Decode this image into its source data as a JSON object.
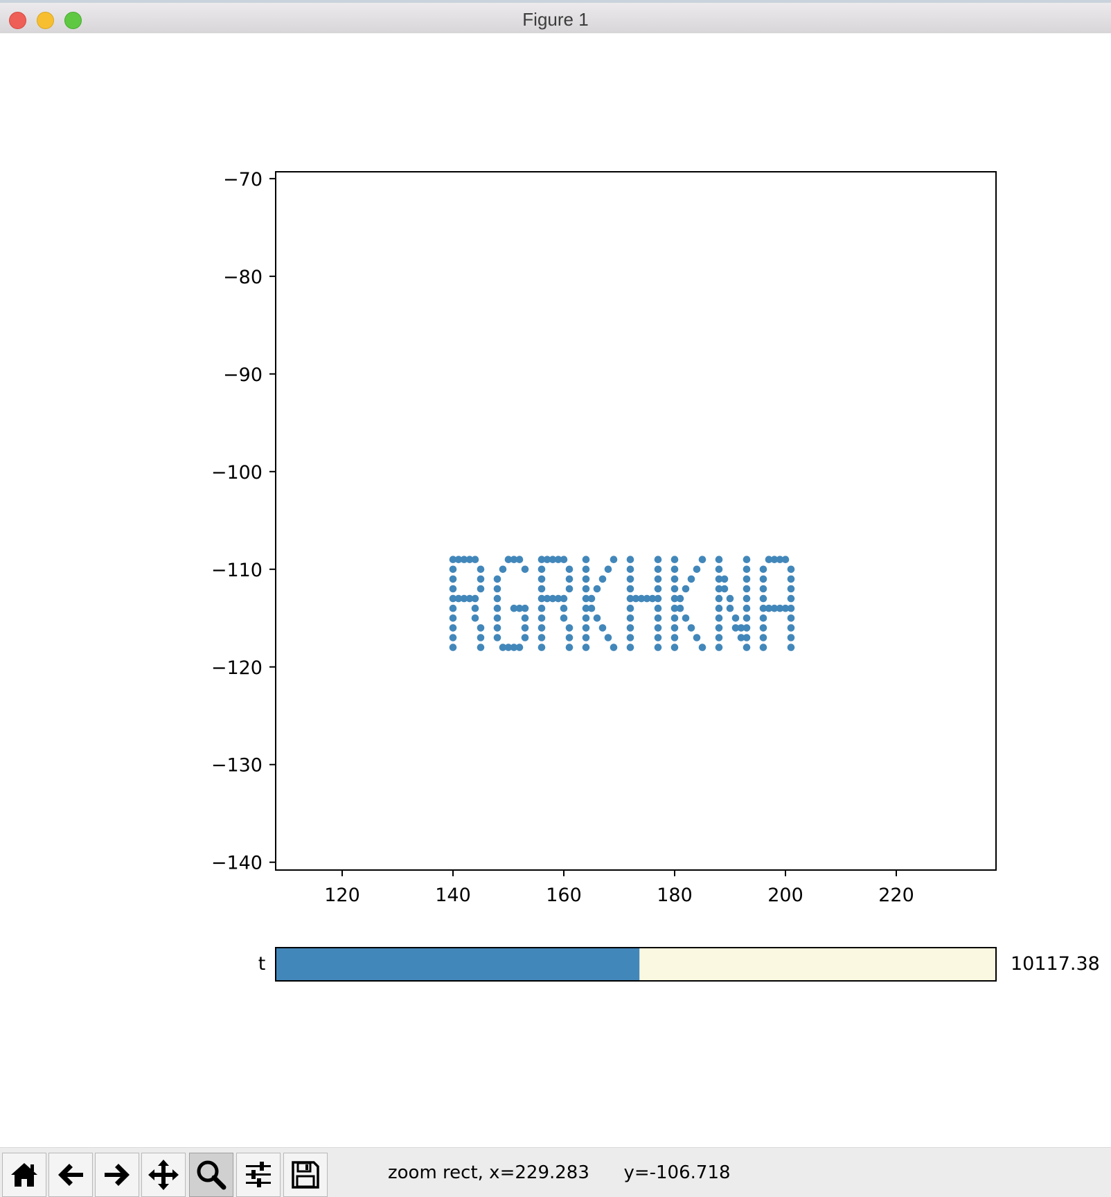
{
  "window": {
    "title": "Figure 1"
  },
  "chart_data": {
    "type": "scatter",
    "title": "",
    "xlabel": "",
    "ylabel": "",
    "xlim": [
      108,
      238
    ],
    "ylim": [
      -140.8,
      -69.3
    ],
    "x_ticks": [
      120,
      140,
      160,
      180,
      200,
      220
    ],
    "y_ticks": [
      -70,
      -80,
      -90,
      -100,
      -110,
      -120,
      -130,
      -140
    ],
    "x_tick_labels": [
      "120",
      "140",
      "160",
      "180",
      "200",
      "220"
    ],
    "y_tick_labels": [
      "−70",
      "−80",
      "−90",
      "−100",
      "−110",
      "−120",
      "−130",
      "−140"
    ],
    "marker_color": "#4287ba",
    "grid": false,
    "text_rendered_by_points": "RGRKHKNA",
    "points": [
      [
        140,
        -109
      ],
      [
        140,
        -110
      ],
      [
        140,
        -111
      ],
      [
        140,
        -112
      ],
      [
        140,
        -113
      ],
      [
        140,
        -114
      ],
      [
        140,
        -115
      ],
      [
        140,
        -116
      ],
      [
        140,
        -117
      ],
      [
        140,
        -118
      ],
      [
        141,
        -109
      ],
      [
        142,
        -109
      ],
      [
        143,
        -109
      ],
      [
        144,
        -109
      ],
      [
        141,
        -113
      ],
      [
        142,
        -113
      ],
      [
        143,
        -113
      ],
      [
        144,
        -113
      ],
      [
        145,
        -110
      ],
      [
        145,
        -111
      ],
      [
        145,
        -112
      ],
      [
        144,
        -114
      ],
      [
        144,
        -115
      ],
      [
        145,
        -116
      ],
      [
        145,
        -117
      ],
      [
        145,
        -118
      ],
      [
        150,
        -109
      ],
      [
        151,
        -109
      ],
      [
        152,
        -109
      ],
      [
        149,
        -110
      ],
      [
        148,
        -111
      ],
      [
        148,
        -112
      ],
      [
        148,
        -113
      ],
      [
        148,
        -114
      ],
      [
        148,
        -115
      ],
      [
        148,
        -116
      ],
      [
        148,
        -117
      ],
      [
        149,
        -118
      ],
      [
        150,
        -118
      ],
      [
        151,
        -118
      ],
      [
        152,
        -118
      ],
      [
        153,
        -117
      ],
      [
        153,
        -116
      ],
      [
        153,
        -115
      ],
      [
        153,
        -114
      ],
      [
        152,
        -114
      ],
      [
        151,
        -114
      ],
      [
        153,
        -110
      ],
      [
        156,
        -109
      ],
      [
        156,
        -110
      ],
      [
        156,
        -111
      ],
      [
        156,
        -112
      ],
      [
        156,
        -113
      ],
      [
        156,
        -114
      ],
      [
        156,
        -115
      ],
      [
        156,
        -116
      ],
      [
        156,
        -117
      ],
      [
        156,
        -118
      ],
      [
        157,
        -109
      ],
      [
        158,
        -109
      ],
      [
        159,
        -109
      ],
      [
        160,
        -109
      ],
      [
        157,
        -113
      ],
      [
        158,
        -113
      ],
      [
        159,
        -113
      ],
      [
        160,
        -113
      ],
      [
        161,
        -110
      ],
      [
        161,
        -111
      ],
      [
        161,
        -112
      ],
      [
        160,
        -114
      ],
      [
        160,
        -115
      ],
      [
        161,
        -116
      ],
      [
        161,
        -117
      ],
      [
        161,
        -118
      ],
      [
        164,
        -109
      ],
      [
        164,
        -110
      ],
      [
        164,
        -111
      ],
      [
        164,
        -112
      ],
      [
        164,
        -113
      ],
      [
        164,
        -114
      ],
      [
        164,
        -115
      ],
      [
        164,
        -116
      ],
      [
        164,
        -117
      ],
      [
        164,
        -118
      ],
      [
        169,
        -109
      ],
      [
        168,
        -110
      ],
      [
        167,
        -111
      ],
      [
        166,
        -112
      ],
      [
        165,
        -113
      ],
      [
        165,
        -114
      ],
      [
        166,
        -115
      ],
      [
        167,
        -116
      ],
      [
        168,
        -117
      ],
      [
        169,
        -118
      ],
      [
        172,
        -109
      ],
      [
        172,
        -110
      ],
      [
        172,
        -111
      ],
      [
        172,
        -112
      ],
      [
        172,
        -113
      ],
      [
        172,
        -114
      ],
      [
        172,
        -115
      ],
      [
        172,
        -116
      ],
      [
        172,
        -117
      ],
      [
        172,
        -118
      ],
      [
        173,
        -113
      ],
      [
        174,
        -113
      ],
      [
        175,
        -113
      ],
      [
        176,
        -113
      ],
      [
        177,
        -109
      ],
      [
        177,
        -110
      ],
      [
        177,
        -111
      ],
      [
        177,
        -112
      ],
      [
        177,
        -113
      ],
      [
        177,
        -114
      ],
      [
        177,
        -115
      ],
      [
        177,
        -116
      ],
      [
        177,
        -117
      ],
      [
        177,
        -118
      ],
      [
        180,
        -109
      ],
      [
        180,
        -110
      ],
      [
        180,
        -111
      ],
      [
        180,
        -112
      ],
      [
        180,
        -113
      ],
      [
        180,
        -114
      ],
      [
        180,
        -115
      ],
      [
        180,
        -116
      ],
      [
        180,
        -117
      ],
      [
        180,
        -118
      ],
      [
        185,
        -109
      ],
      [
        184,
        -110
      ],
      [
        183,
        -111
      ],
      [
        182,
        -112
      ],
      [
        181,
        -113
      ],
      [
        181,
        -114
      ],
      [
        182,
        -115
      ],
      [
        183,
        -116
      ],
      [
        184,
        -117
      ],
      [
        185,
        -118
      ],
      [
        188,
        -109
      ],
      [
        188,
        -110
      ],
      [
        188,
        -111
      ],
      [
        188,
        -112
      ],
      [
        188,
        -113
      ],
      [
        188,
        -114
      ],
      [
        188,
        -115
      ],
      [
        188,
        -116
      ],
      [
        188,
        -117
      ],
      [
        188,
        -118
      ],
      [
        189,
        -111
      ],
      [
        189,
        -112
      ],
      [
        190,
        -113
      ],
      [
        190,
        -114
      ],
      [
        191,
        -115
      ],
      [
        191,
        -116
      ],
      [
        192,
        -117
      ],
      [
        192,
        -116
      ],
      [
        193,
        -109
      ],
      [
        193,
        -110
      ],
      [
        193,
        -111
      ],
      [
        193,
        -112
      ],
      [
        193,
        -113
      ],
      [
        193,
        -114
      ],
      [
        193,
        -115
      ],
      [
        193,
        -116
      ],
      [
        193,
        -117
      ],
      [
        193,
        -118
      ],
      [
        196,
        -110
      ],
      [
        196,
        -111
      ],
      [
        196,
        -112
      ],
      [
        196,
        -113
      ],
      [
        196,
        -114
      ],
      [
        196,
        -115
      ],
      [
        196,
        -116
      ],
      [
        196,
        -117
      ],
      [
        196,
        -118
      ],
      [
        197,
        -109
      ],
      [
        198,
        -109
      ],
      [
        199,
        -109
      ],
      [
        200,
        -109
      ],
      [
        201,
        -110
      ],
      [
        201,
        -111
      ],
      [
        201,
        -112
      ],
      [
        201,
        -113
      ],
      [
        201,
        -114
      ],
      [
        201,
        -115
      ],
      [
        201,
        -116
      ],
      [
        201,
        -117
      ],
      [
        201,
        -118
      ],
      [
        197,
        -114
      ],
      [
        198,
        -114
      ],
      [
        199,
        -114
      ],
      [
        200,
        -114
      ]
    ]
  },
  "slider": {
    "label": "t",
    "value_text": "10117.38",
    "fill_fraction": 0.505,
    "fill_color": "#4287ba",
    "track_color": "#faf8e0"
  },
  "toolbar": {
    "buttons": [
      {
        "icon": "home-icon",
        "active": false
      },
      {
        "icon": "back-arrow-icon",
        "active": false
      },
      {
        "icon": "forward-arrow-icon",
        "active": false
      },
      {
        "icon": "pan-icon",
        "active": false
      },
      {
        "icon": "zoom-icon",
        "active": true
      },
      {
        "icon": "configure-subplots-icon",
        "active": false
      },
      {
        "icon": "save-icon",
        "active": false
      }
    ],
    "status_text": "zoom rect, x=229.283      y=-106.718"
  }
}
